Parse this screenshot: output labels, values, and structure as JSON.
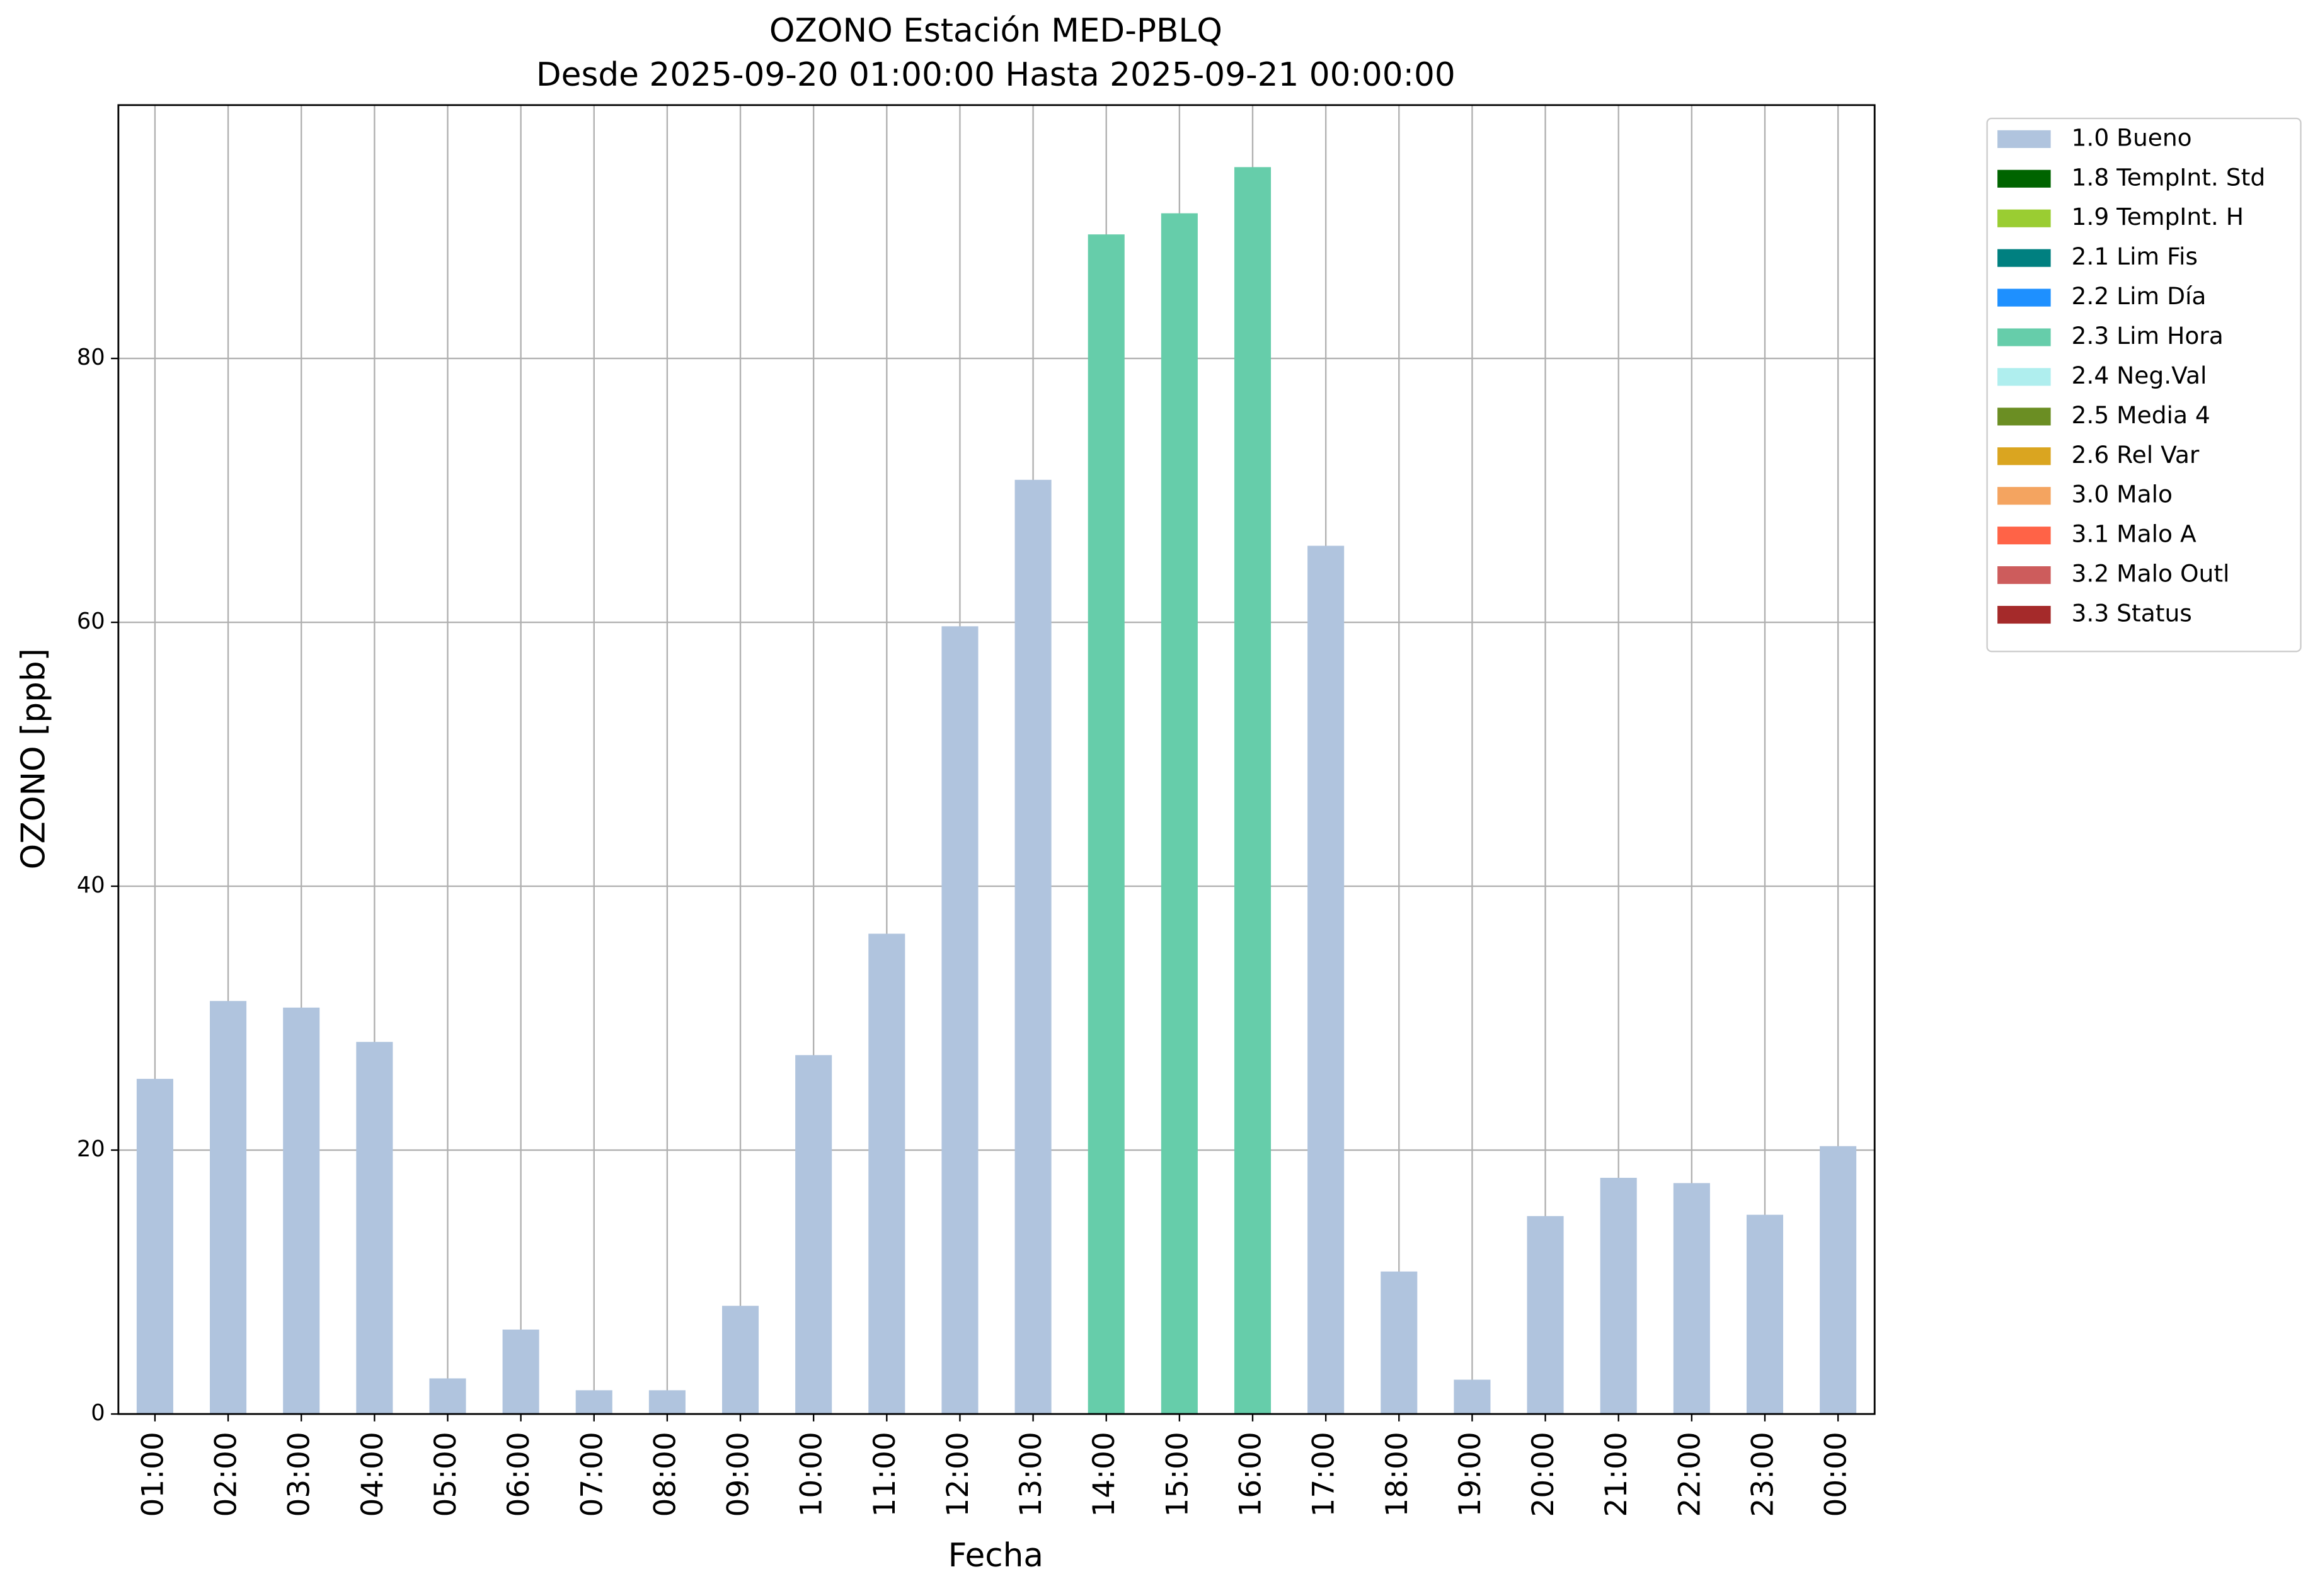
{
  "chart_data": {
    "type": "stacked_bar",
    "title": "OZONO Estación MED-PBLQ",
    "subtitle": "Desde 2025-09-20 01:00:00 Hasta 2025-09-21 00:00:00",
    "x_label": "Fecha",
    "y_label": "OZONO [ppb]",
    "categories": [
      "01:00",
      "02:00",
      "03:00",
      "04:00",
      "05:00",
      "06:00",
      "07:00",
      "08:00",
      "09:00",
      "10:00",
      "11:00",
      "12:00",
      "13:00",
      "14:00",
      "15:00",
      "16:00",
      "17:00",
      "18:00",
      "19:00",
      "20:00",
      "21:00",
      "22:00",
      "23:00",
      "00:00"
    ],
    "series": [
      {
        "name": "1.0 Bueno",
        "color": "#b0c4de",
        "values": [
          25.4,
          31.3,
          30.8,
          28.2,
          2.7,
          6.4,
          1.8,
          1.8,
          8.2,
          27.2,
          36.4,
          59.7,
          70.8,
          null,
          null,
          null,
          65.8,
          10.8,
          2.6,
          15.0,
          17.9,
          17.5,
          15.1,
          20.3
        ]
      },
      {
        "name": "1.8 TempInt. Std",
        "color": "#006400",
        "values": [
          null,
          null,
          null,
          null,
          null,
          null,
          null,
          null,
          null,
          null,
          null,
          null,
          null,
          null,
          null,
          null,
          null,
          null,
          null,
          null,
          null,
          null,
          null,
          null
        ]
      },
      {
        "name": "1.9 TempInt. H",
        "color": "#9acd32",
        "values": [
          null,
          null,
          null,
          null,
          null,
          null,
          null,
          null,
          null,
          null,
          null,
          null,
          null,
          null,
          null,
          null,
          null,
          null,
          null,
          null,
          null,
          null,
          null,
          null
        ]
      },
      {
        "name": "2.1 Lim Fis",
        "color": "#008080",
        "values": [
          null,
          null,
          null,
          null,
          null,
          null,
          null,
          null,
          null,
          null,
          null,
          null,
          null,
          null,
          null,
          null,
          null,
          null,
          null,
          null,
          null,
          null,
          null,
          null
        ]
      },
      {
        "name": "2.2 Lim Día",
        "color": "#1e90ff",
        "values": [
          null,
          null,
          null,
          null,
          null,
          null,
          null,
          null,
          null,
          null,
          null,
          null,
          null,
          null,
          null,
          null,
          null,
          null,
          null,
          null,
          null,
          null,
          null,
          null
        ]
      },
      {
        "name": "2.3 Lim Hora",
        "color": "#66cdaa",
        "values": [
          null,
          null,
          null,
          null,
          null,
          null,
          null,
          null,
          null,
          null,
          null,
          null,
          null,
          89.4,
          91.0,
          94.5,
          null,
          null,
          null,
          null,
          null,
          null,
          null,
          null
        ]
      },
      {
        "name": "2.4 Neg.Val",
        "color": "#afeeee",
        "values": [
          null,
          null,
          null,
          null,
          null,
          null,
          null,
          null,
          null,
          null,
          null,
          null,
          null,
          null,
          null,
          null,
          null,
          null,
          null,
          null,
          null,
          null,
          null,
          null
        ]
      },
      {
        "name": "2.5 Media 4",
        "color": "#6b8e23",
        "values": [
          null,
          null,
          null,
          null,
          null,
          null,
          null,
          null,
          null,
          null,
          null,
          null,
          null,
          null,
          null,
          null,
          null,
          null,
          null,
          null,
          null,
          null,
          null,
          null
        ]
      },
      {
        "name": "2.6 Rel Var",
        "color": "#daa520",
        "values": [
          null,
          null,
          null,
          null,
          null,
          null,
          null,
          null,
          null,
          null,
          null,
          null,
          null,
          null,
          null,
          null,
          null,
          null,
          null,
          null,
          null,
          null,
          null,
          null
        ]
      },
      {
        "name": "3.0 Malo",
        "color": "#f4a460",
        "values": [
          null,
          null,
          null,
          null,
          null,
          null,
          null,
          null,
          null,
          null,
          null,
          null,
          null,
          null,
          null,
          null,
          null,
          null,
          null,
          null,
          null,
          null,
          null,
          null
        ]
      },
      {
        "name": "3.1 Malo A",
        "color": "#ff6347",
        "values": [
          null,
          null,
          null,
          null,
          null,
          null,
          null,
          null,
          null,
          null,
          null,
          null,
          null,
          null,
          null,
          null,
          null,
          null,
          null,
          null,
          null,
          null,
          null,
          null
        ]
      },
      {
        "name": "3.2 Malo Outl",
        "color": "#cd5c5c",
        "values": [
          null,
          null,
          null,
          null,
          null,
          null,
          null,
          null,
          null,
          null,
          null,
          null,
          null,
          null,
          null,
          null,
          null,
          null,
          null,
          null,
          null,
          null,
          null,
          null
        ]
      },
      {
        "name": "3.3 Status",
        "color": "#a52a2a",
        "values": [
          null,
          null,
          null,
          null,
          null,
          null,
          null,
          null,
          null,
          null,
          null,
          null,
          null,
          null,
          null,
          null,
          null,
          null,
          null,
          null,
          null,
          null,
          null,
          null
        ]
      }
    ],
    "ylim": [
      0,
      99.2
    ],
    "yticks": [
      0,
      20,
      40,
      60,
      80
    ],
    "grid": true,
    "legend": "outside-right"
  }
}
